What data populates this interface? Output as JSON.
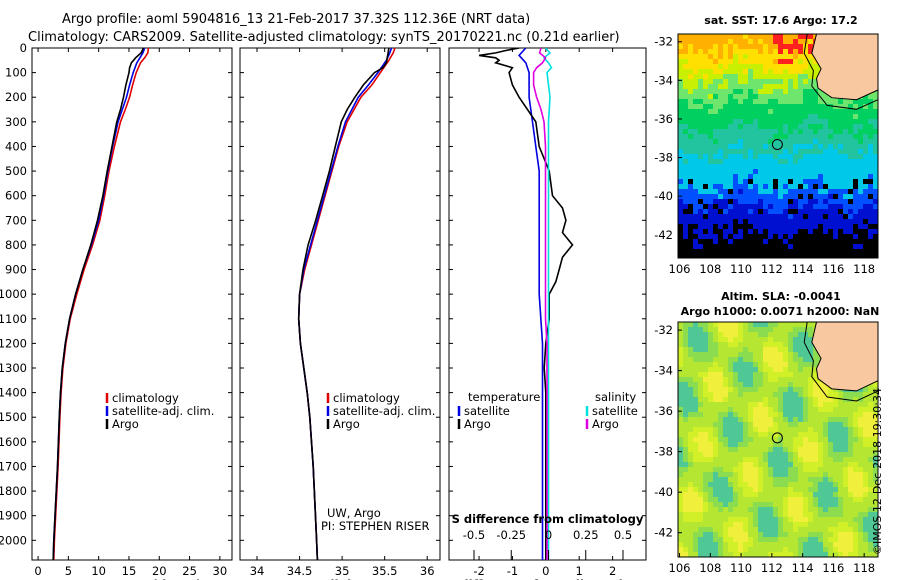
{
  "header": {
    "line1": "Argo profile: aoml 5904816_13 21-Feb-2017 37.32S 112.36E (NRT data)",
    "line2": "Climatology: CARS2009. Satellite-adjusted climatology: synTS_20170221.nc (0.21d earlier)"
  },
  "colors": {
    "climatology": "#e00000",
    "satellite": "#0000e0",
    "argo": "#000000",
    "salinity_satellite": "#00e0e0",
    "salinity_argo": "#e000e0"
  },
  "chart_data": [
    {
      "type": "line",
      "panel": "temperature",
      "xlabel": "temperature (deg C)",
      "ylabel": "",
      "xlim": [
        -1,
        32
      ],
      "ylim": [
        2080,
        0
      ],
      "xticks": [
        0,
        5,
        10,
        15,
        20,
        25,
        30
      ],
      "yticks": [
        0,
        100,
        200,
        300,
        400,
        500,
        600,
        700,
        800,
        900,
        1000,
        1100,
        1200,
        1300,
        1400,
        1500,
        1600,
        1700,
        1800,
        1900,
        2000
      ],
      "ytick_labels": [
        "0",
        "100",
        "200",
        "300",
        "400",
        "500",
        "600",
        "700",
        "800",
        "900",
        "1000",
        "1100",
        "1200",
        "1300",
        "1400",
        "1500",
        "1600",
        "1700",
        "1800",
        "1900",
        "2000"
      ],
      "legend": [
        "climatology",
        "satellite-adj. clim.",
        "Argo"
      ],
      "series": [
        {
          "name": "climatology",
          "color_key": "climatology",
          "depth": [
            0,
            20,
            40,
            60,
            100,
            150,
            200,
            250,
            300,
            400,
            500,
            600,
            700,
            800,
            900,
            1000,
            1100,
            1200,
            1300,
            1400,
            1500,
            1700,
            2000,
            2080
          ],
          "values": [
            18.2,
            18.1,
            17.6,
            16.9,
            16.2,
            15.6,
            15.1,
            14.4,
            13.6,
            12.6,
            11.7,
            11.0,
            10.2,
            9.0,
            7.6,
            6.4,
            5.3,
            4.6,
            4.1,
            3.8,
            3.6,
            3.3,
            2.7,
            2.6
          ]
        },
        {
          "name": "satellite-adj. clim.",
          "color_key": "satellite",
          "depth": [
            0,
            20,
            40,
            60,
            100,
            150,
            200,
            250,
            300,
            400,
            500,
            600,
            700,
            800,
            900,
            1000,
            1100,
            1200,
            1300,
            1400,
            1500,
            1700,
            2000,
            2080
          ],
          "values": [
            17.6,
            17.3,
            16.8,
            16.3,
            15.7,
            15.1,
            14.6,
            13.9,
            13.2,
            12.3,
            11.5,
            10.8,
            10.0,
            8.8,
            7.4,
            6.2,
            5.2,
            4.5,
            4.0,
            3.7,
            3.5,
            3.2,
            2.6,
            2.5
          ]
        },
        {
          "name": "Argo",
          "color_key": "argo",
          "depth": [
            0,
            20,
            40,
            60,
            80,
            100,
            150,
            200,
            250,
            300,
            400,
            500,
            600,
            700,
            800,
            900,
            1000,
            1100,
            1200,
            1300,
            1400,
            1500,
            1700,
            2000,
            2080
          ],
          "values": [
            17.4,
            17.0,
            16.1,
            15.4,
            15.1,
            15.0,
            14.5,
            14.1,
            13.6,
            13.0,
            12.2,
            11.4,
            10.7,
            9.8,
            8.7,
            7.4,
            6.2,
            5.2,
            4.5,
            4.0,
            3.7,
            3.5,
            3.2,
            2.6,
            2.5
          ]
        }
      ]
    },
    {
      "type": "line",
      "panel": "salinity",
      "xlabel": "salinity",
      "xlim": [
        33.8,
        36.15
      ],
      "ylim": [
        2080,
        0
      ],
      "xticks": [
        34,
        34.5,
        35,
        35.5,
        36
      ],
      "xtick_labels": [
        "34",
        "34.5",
        "35",
        "35.5",
        "36"
      ],
      "legend": [
        "climatology",
        "satellite-adj. clim.",
        "Argo"
      ],
      "annotations": [
        "UW, Argo",
        "PI: STEPHEN RISER"
      ],
      "series": [
        {
          "name": "climatology",
          "color_key": "climatology",
          "depth": [
            0,
            20,
            50,
            100,
            150,
            200,
            300,
            400,
            500,
            600,
            700,
            800,
            900,
            1000,
            1100,
            1200,
            1300,
            1400,
            1500,
            1700,
            2000,
            2080
          ],
          "values": [
            35.62,
            35.6,
            35.55,
            35.45,
            35.35,
            35.22,
            35.06,
            34.96,
            34.88,
            34.8,
            34.72,
            34.64,
            34.56,
            34.5,
            34.49,
            34.51,
            34.55,
            34.59,
            34.62,
            34.66,
            34.7,
            34.71
          ]
        },
        {
          "name": "satellite-adj. clim.",
          "color_key": "satellite",
          "depth": [
            0,
            20,
            50,
            100,
            150,
            200,
            300,
            400,
            500,
            600,
            700,
            800,
            900,
            1000,
            1100,
            1200,
            1300,
            1400,
            1500,
            1700,
            2000,
            2080
          ],
          "values": [
            35.58,
            35.56,
            35.52,
            35.42,
            35.31,
            35.19,
            35.04,
            34.95,
            34.87,
            34.79,
            34.71,
            34.63,
            34.55,
            34.5,
            34.49,
            34.51,
            34.55,
            34.59,
            34.62,
            34.66,
            34.7,
            34.71
          ]
        },
        {
          "name": "Argo",
          "color_key": "argo",
          "depth": [
            0,
            20,
            40,
            60,
            80,
            100,
            150,
            200,
            250,
            300,
            400,
            500,
            600,
            700,
            800,
            900,
            1000,
            1100,
            1200,
            1300,
            1400,
            1500,
            1700,
            2000,
            2080
          ],
          "values": [
            35.55,
            35.54,
            35.53,
            35.52,
            35.48,
            35.38,
            35.25,
            35.15,
            35.06,
            34.99,
            34.92,
            34.85,
            34.77,
            34.69,
            34.6,
            34.54,
            34.5,
            34.49,
            34.51,
            34.55,
            34.59,
            34.62,
            34.66,
            34.7,
            34.71
          ]
        }
      ]
    },
    {
      "type": "line",
      "panel": "difference",
      "xlabel": "T difference from climatology",
      "top_label": "S difference from climatology",
      "xlim": [
        -2.9,
        3.0
      ],
      "ylim": [
        2080,
        0
      ],
      "xticks": [
        -2,
        -1,
        0,
        1,
        2
      ],
      "xtick_labels": [
        "-2",
        "-1",
        "0",
        "1",
        "2"
      ],
      "s_ticks": [
        -0.5,
        -0.25,
        0,
        0.25,
        0.5
      ],
      "s_tick_labels": [
        "-0.5",
        "-0.25",
        "0",
        "0.25",
        "0.5"
      ],
      "legend_temperature": {
        "title": "temperature",
        "items": [
          "satellite",
          "Argo"
        ]
      },
      "legend_salinity": {
        "title": "salinity",
        "items": [
          "satellite",
          "Argo"
        ]
      },
      "series": [
        {
          "name": "temperature satellite",
          "color_key": "satellite",
          "depth": [
            0,
            30,
            60,
            100,
            150,
            200,
            300,
            400,
            500,
            600,
            700,
            800,
            900,
            1000,
            1200,
            1500,
            2080
          ],
          "values": [
            -0.6,
            -0.8,
            -0.6,
            -0.5,
            -0.5,
            -0.5,
            -0.4,
            -0.3,
            -0.2,
            -0.2,
            -0.2,
            -0.2,
            -0.2,
            -0.2,
            -0.1,
            -0.1,
            -0.1
          ]
        },
        {
          "name": "temperature Argo",
          "color_key": "argo",
          "depth": [
            0,
            10,
            20,
            30,
            40,
            50,
            60,
            80,
            100,
            150,
            200,
            300,
            400,
            500,
            600,
            650,
            700,
            750,
            800,
            850,
            900,
            950,
            1000,
            1100,
            1200,
            1300,
            1400,
            1500,
            1600,
            1800,
            2000,
            2080
          ],
          "values": [
            -0.8,
            -1.2,
            -1.5,
            -2.0,
            -1.5,
            -1.4,
            -1.5,
            -1.0,
            -1.1,
            -1.0,
            -0.8,
            -0.3,
            -0.2,
            0.1,
            0.2,
            0.5,
            0.6,
            0.5,
            0.8,
            0.5,
            0.4,
            0.3,
            0.1,
            0.1,
            0.0,
            -0.05,
            0.0,
            0.0,
            0.0,
            0.0,
            0.0,
            0.0
          ]
        },
        {
          "name": "salinity satellite",
          "color_key": "salinity_satellite",
          "depth": [
            0,
            20,
            40,
            60,
            80,
            100,
            150,
            200,
            300,
            400,
            500,
            800,
            1000,
            1200,
            2080
          ],
          "values": [
            -0.02,
            0.01,
            -0.03,
            0.0,
            0.02,
            -0.01,
            0.0,
            0.01,
            0.0,
            0.0,
            0.0,
            0.0,
            0.0,
            0.0,
            0.0
          ]
        },
        {
          "name": "salinity Argo",
          "color_key": "salinity_argo",
          "depth": [
            0,
            20,
            40,
            60,
            80,
            100,
            150,
            200,
            250,
            300,
            400,
            500,
            600,
            700,
            800,
            900,
            1000,
            1100,
            1200,
            1500,
            2080
          ],
          "values": [
            -0.05,
            -0.06,
            -0.02,
            -0.04,
            -0.08,
            -0.1,
            -0.1,
            -0.08,
            -0.05,
            -0.03,
            -0.02,
            -0.02,
            -0.02,
            -0.02,
            -0.02,
            -0.02,
            -0.02,
            -0.02,
            -0.01,
            -0.01,
            -0.01
          ]
        }
      ]
    },
    {
      "type": "heatmap",
      "panel": "satellite SST map",
      "title": "sat. SST: 17.6 Argo: 17.2",
      "xticks": [
        106,
        108,
        110,
        112,
        114,
        116,
        118
      ],
      "yticks": [
        -32,
        -34,
        -36,
        -38,
        -40,
        -42
      ],
      "xlim": [
        105.9,
        118.9
      ],
      "ylim": [
        -43.2,
        -31.6
      ],
      "profile_marker": [
        112.36,
        -37.32
      ]
    },
    {
      "type": "heatmap",
      "panel": "SLA map",
      "title_line1": "Altim. SLA: -0.0041",
      "title_line2": "Argo h1000: 0.0071 h2000: NaN",
      "xticks": [
        106,
        108,
        110,
        112,
        114,
        116,
        118
      ],
      "yticks": [
        -32,
        -34,
        -36,
        -38,
        -40,
        -42
      ],
      "xlim": [
        105.9,
        118.9
      ],
      "ylim": [
        -43.2,
        -31.6
      ],
      "profile_marker": [
        112.36,
        -37.32
      ]
    }
  ],
  "credit": "©IMOS 12-Dec-2018 19:30:34"
}
